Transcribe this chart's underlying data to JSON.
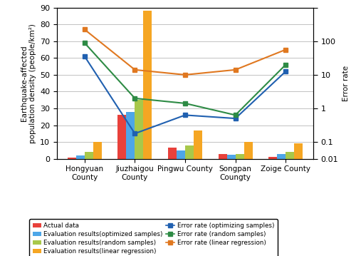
{
  "categories": [
    "Hongyuan\nCounty",
    "Jiuzhaigou\nCounty",
    "Pingwu County",
    "Songpan\nCoungty",
    "Zoige County"
  ],
  "bar_actual": [
    0.5,
    26,
    6.5,
    3,
    1
  ],
  "bar_optimized": [
    2,
    28,
    5,
    2.5,
    3
  ],
  "bar_random": [
    4,
    35,
    8,
    3,
    4
  ],
  "bar_linear": [
    10,
    88,
    17,
    10,
    9
  ],
  "line_error_opt": [
    61,
    15,
    26,
    24,
    52
  ],
  "line_error_rand": [
    69,
    36,
    33,
    26,
    56
  ],
  "line_error_lin": [
    77,
    53,
    50,
    53,
    65
  ],
  "bar_colors": {
    "actual": "#e8413b",
    "optimized": "#4da6e8",
    "random": "#a8c84a",
    "linear": "#f5a623"
  },
  "line_colors": {
    "opt": "#2060b0",
    "rand": "#2e8b45",
    "lin": "#e07820"
  },
  "ylabel_left": "Earthquake-affected\npopulation density (people/km²)",
  "ylabel_right": "Error rate",
  "ylim_left": [
    0,
    90
  ],
  "yticks_left": [
    0,
    10,
    20,
    30,
    40,
    50,
    60,
    70,
    80,
    90
  ],
  "right_tick_positions": [
    0,
    10,
    30,
    50,
    70,
    90
  ],
  "right_tick_labels": [
    "0.01",
    "0.1",
    "1",
    "10",
    "100",
    ""
  ],
  "legend_items_bar": [
    {
      "label": "Actual data",
      "color": "#e8413b"
    },
    {
      "label": "Evaluation results(optimized samples)",
      "color": "#4da6e8"
    },
    {
      "label": "Evaluation results(random samples)",
      "color": "#a8c84a"
    },
    {
      "label": "Evaluation results(linear regression)",
      "color": "#f5a623"
    }
  ],
  "legend_items_line": [
    {
      "label": "Error rate (optimizing samples)",
      "color": "#2060b0"
    },
    {
      "label": "Error rate (random samples)",
      "color": "#2e8b45"
    },
    {
      "label": "Error rate (linear regression)",
      "color": "#e07820"
    }
  ]
}
